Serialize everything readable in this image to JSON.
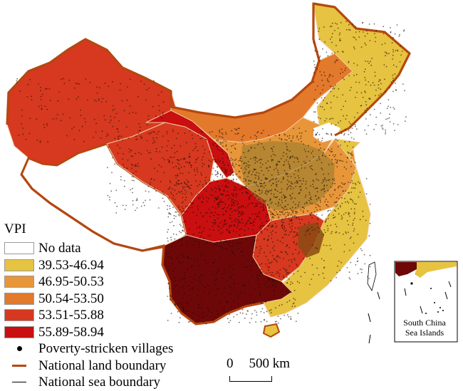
{
  "legend": {
    "title": "VPI",
    "classes": [
      {
        "label": "No data",
        "color": "#ffffff"
      },
      {
        "label": "39.53-46.94",
        "color": "#e6c340"
      },
      {
        "label": "46.95-50.53",
        "color": "#e8963a"
      },
      {
        "label": "50.54-53.50",
        "color": "#e3792b"
      },
      {
        "label": "53.51-55.88",
        "color": "#d6391f"
      },
      {
        "label": "55.89-58.94",
        "color": "#c90f10"
      }
    ],
    "poverty_villages_label": "Poverty-stricken villages",
    "land_boundary_label": "National land boundary",
    "sea_boundary_label": "National sea boundary"
  },
  "scale": {
    "zero": "0",
    "distance": "500 km"
  },
  "inset": {
    "line1": "South China",
    "line2": "Sea Islands"
  },
  "colors": {
    "border": "#b5470f",
    "dark_region": "#6e0808",
    "brown_region": "#8a4a14",
    "olive_region": "#8e7a2c"
  }
}
